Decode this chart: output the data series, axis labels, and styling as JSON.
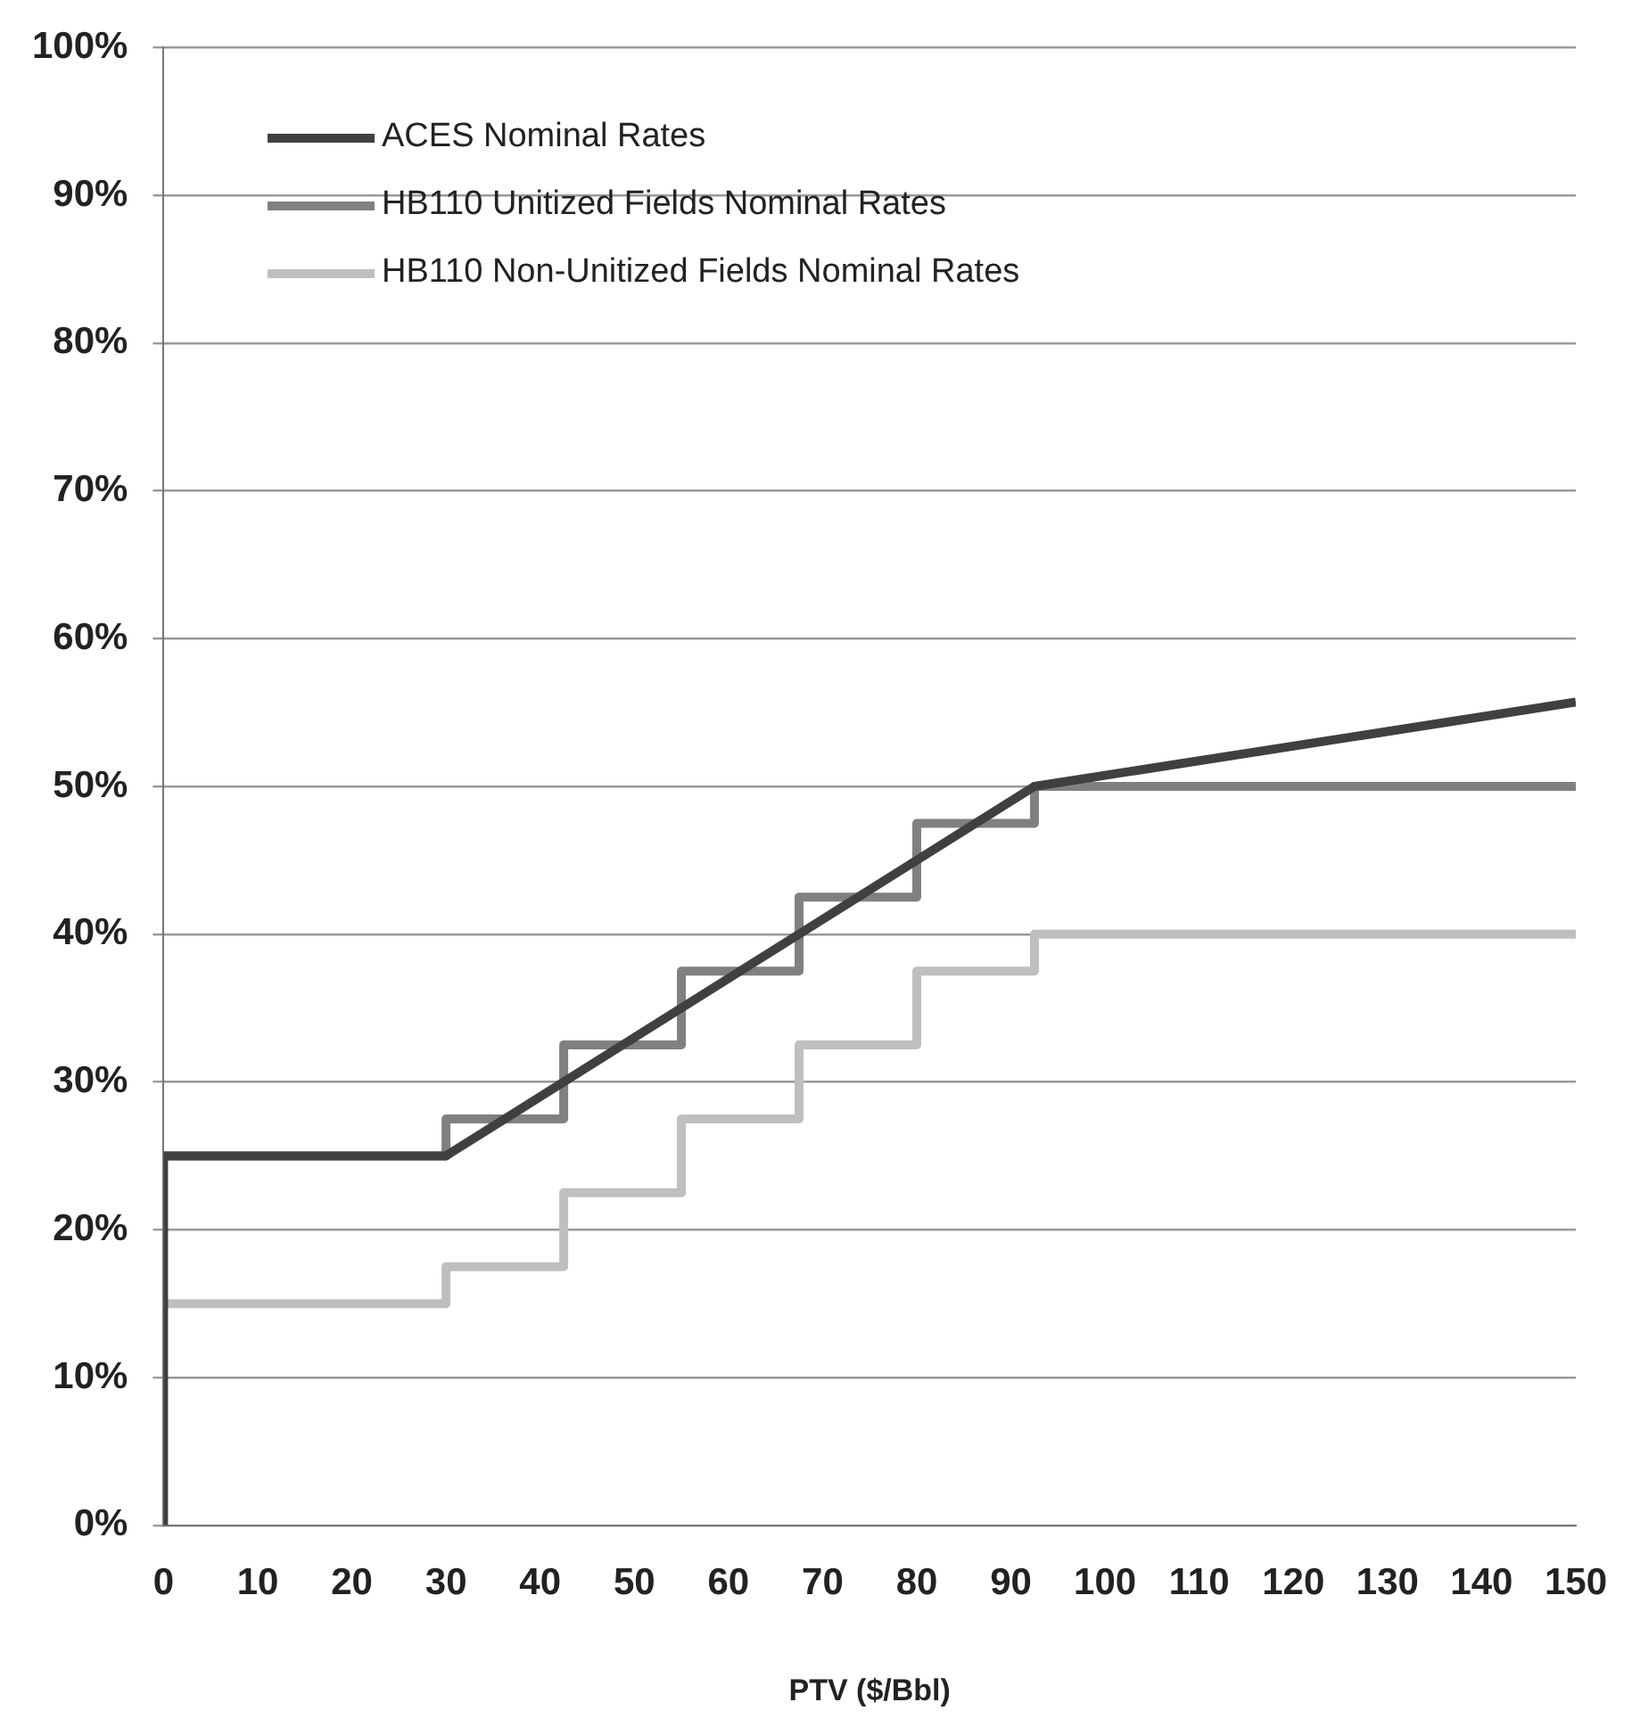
{
  "chart_data": {
    "type": "line",
    "xlabel": "PTV ($/Bbl)",
    "xlim": [
      0,
      150
    ],
    "xticks": [
      0,
      10,
      20,
      30,
      40,
      50,
      60,
      70,
      80,
      90,
      100,
      110,
      120,
      130,
      140,
      150
    ],
    "ylim": [
      0,
      100
    ],
    "yticks": [
      {
        "value": 0,
        "label": "0%"
      },
      {
        "value": 10,
        "label": "10%"
      },
      {
        "value": 20,
        "label": "20%"
      },
      {
        "value": 30,
        "label": "30%"
      },
      {
        "value": 40,
        "label": "40%"
      },
      {
        "value": 50,
        "label": "50%"
      },
      {
        "value": 60,
        "label": "60%"
      },
      {
        "value": 70,
        "label": "70%"
      },
      {
        "value": 80,
        "label": "80%"
      },
      {
        "value": 90,
        "label": "90%"
      },
      {
        "value": 100,
        "label": "100%"
      }
    ],
    "grid": "y",
    "legend": "top left",
    "marker": "none",
    "line_style": "solid",
    "series": [
      {
        "name": "ACES Nominal Rates",
        "color": "#404040",
        "x": [
          0,
          0,
          30,
          92.5,
          150
        ],
        "values": [
          0,
          25,
          25,
          50,
          55.7
        ]
      },
      {
        "name": "HB110 Unitized Fields Nominal Rates",
        "type": "step",
        "color": "#808080",
        "x": [
          0,
          30,
          42.5,
          55,
          67.5,
          80,
          92.5,
          150
        ],
        "values": [
          25,
          27.5,
          32.5,
          37.5,
          42.5,
          47.5,
          50,
          50
        ]
      },
      {
        "name": "HB110 Non-Unitized Fields Nominal Rates",
        "type": "step",
        "color": "#bfbfbf",
        "x": [
          0,
          30,
          42.5,
          55,
          67.5,
          80,
          92.5,
          150
        ],
        "values": [
          15,
          17.5,
          22.5,
          27.5,
          32.5,
          37.5,
          40,
          40
        ]
      }
    ]
  }
}
